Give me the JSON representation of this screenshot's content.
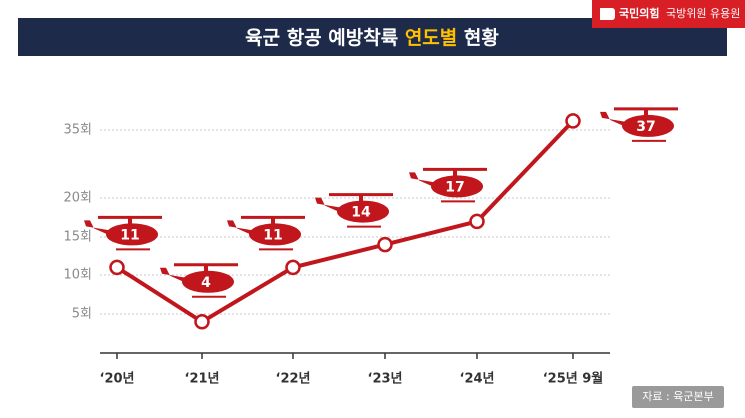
{
  "title": [
    "육군 항공 예방착륙",
    "연도별",
    "현황"
  ],
  "badge": {
    "party": "국민의힘",
    "member": "국방위원 유용원"
  },
  "source": "자료 : 육군본부",
  "chart_data": {
    "type": "line",
    "categories": [
      "‘20년",
      "‘21년",
      "‘22년",
      "‘23년",
      "‘24년",
      "‘25년 9월"
    ],
    "values": [
      11,
      4,
      11,
      14,
      17,
      37
    ],
    "color": "#c0161c",
    "ylim": [
      0,
      40
    ],
    "yticks": [
      {
        "value": 5,
        "label": "5회"
      },
      {
        "value": 10,
        "label": "10회"
      },
      {
        "value": 15,
        "label": "15회"
      },
      {
        "value": 20,
        "label": "20회"
      },
      {
        "value": 35,
        "label": "35회"
      }
    ],
    "grid": true
  }
}
